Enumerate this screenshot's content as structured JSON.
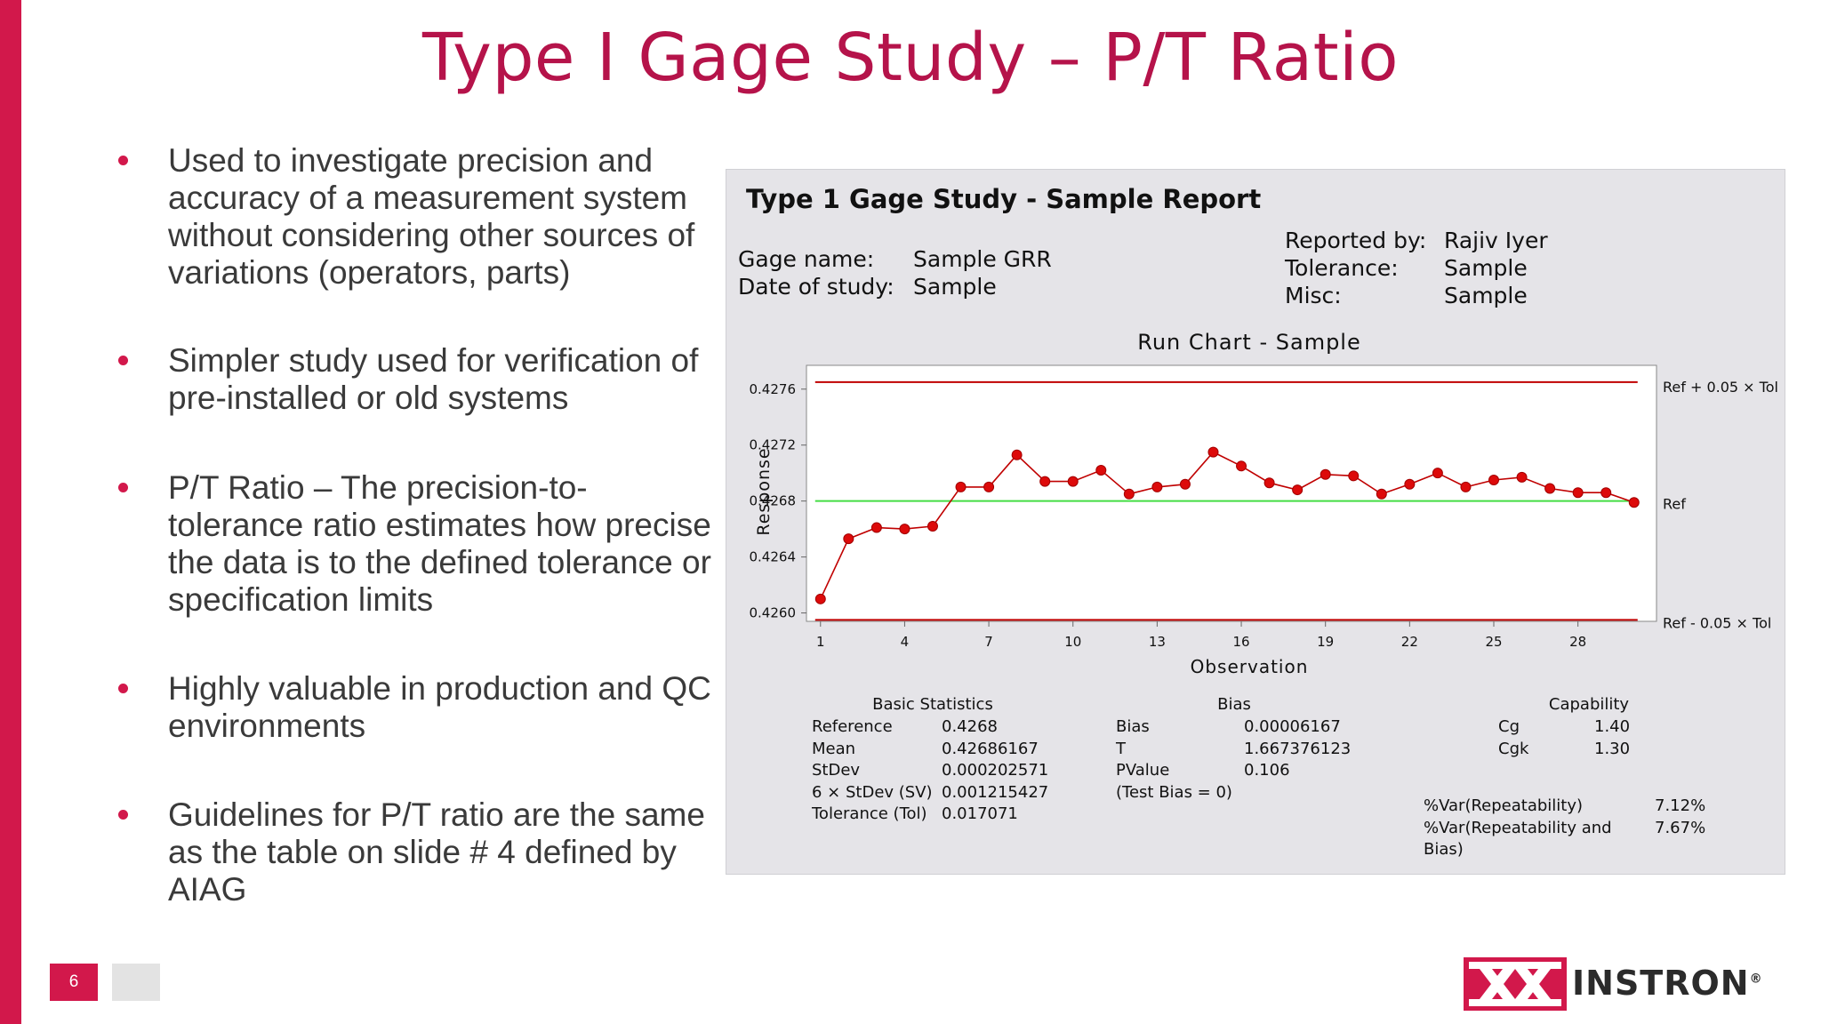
{
  "slide": {
    "title": "Type I Gage Study – P/T Ratio",
    "page_number": "6",
    "accent_color": "#d2184b",
    "title_color": "#b5134a"
  },
  "bullets": [
    "Used to investigate precision and accuracy of a measurement system without considering other sources of variations (operators, parts)",
    "Simpler study used for verification of pre-installed or old systems",
    "P/T Ratio – The precision-to-tolerance ratio estimates how precise the data is to the defined tolerance or specification limits",
    "Highly valuable in production and QC environments",
    "Guidelines for P/T ratio are the same as the table on slide # 4 defined by AIAG"
  ],
  "report": {
    "title": "Type 1 Gage Study - Sample Report",
    "gage_name_label": "Gage name:",
    "gage_name_value": "Sample GRR",
    "date_label": "Date of study:",
    "date_value": "Sample",
    "reported_by_label": "Reported by:",
    "reported_by_value": "Rajiv Iyer",
    "tolerance_label": "Tolerance:",
    "tolerance_value": "Sample",
    "misc_label": "Misc:",
    "misc_value": "Sample"
  },
  "chart_data": {
    "type": "line",
    "title": "Run Chart - Sample",
    "xlabel": "Observation",
    "ylabel": "Response",
    "x_ticks": [
      1,
      4,
      7,
      10,
      13,
      16,
      19,
      22,
      25,
      28
    ],
    "y_ticks": [
      "0.4260",
      "0.4264",
      "0.4268",
      "0.4272",
      "0.4276"
    ],
    "xlim": [
      0.5,
      30.8
    ],
    "ylim": [
      0.42594,
      0.42777
    ],
    "reference": 0.4268,
    "upper_limit": 0.42765,
    "lower_limit": 0.42595,
    "ref_label": "Ref",
    "upper_label": "Ref + 0.05 × Tol",
    "lower_label": "Ref - 0.05 × Tol",
    "grid": false,
    "line_color": "#c00000",
    "ref_color": "#44dd44",
    "limit_color": "#c00000",
    "x": [
      1,
      2,
      3,
      4,
      5,
      6,
      7,
      8,
      9,
      10,
      11,
      12,
      13,
      14,
      15,
      16,
      17,
      18,
      19,
      20,
      21,
      22,
      23,
      24,
      25,
      26,
      27,
      28,
      29,
      30
    ],
    "values": [
      0.4261,
      0.42653,
      0.42661,
      0.4266,
      0.42662,
      0.4269,
      0.4269,
      0.42713,
      0.42694,
      0.42694,
      0.42702,
      0.42685,
      0.4269,
      0.42692,
      0.42715,
      0.42705,
      0.42693,
      0.42688,
      0.42699,
      0.42698,
      0.42685,
      0.42692,
      0.427,
      0.4269,
      0.42695,
      0.42697,
      0.42689,
      0.42686,
      0.42686,
      0.42679
    ]
  },
  "basic_statistics": {
    "header": "Basic Statistics",
    "rows": [
      {
        "label": "Reference",
        "value": "0.4268"
      },
      {
        "label": "Mean",
        "value": "0.42686167"
      },
      {
        "label": "StDev",
        "value": "0.000202571"
      },
      {
        "label": "6 × StDev (SV)",
        "value": "0.001215427"
      },
      {
        "label": "Tolerance (Tol)",
        "value": "0.017071"
      }
    ]
  },
  "bias": {
    "header": "Bias",
    "rows": [
      {
        "label": "Bias",
        "value": "0.00006167"
      },
      {
        "label": "T",
        "value": "1.667376123"
      },
      {
        "label": "PValue",
        "value": "0.106"
      },
      {
        "label": "(Test Bias = 0)",
        "value": ""
      }
    ]
  },
  "capability": {
    "header": "Capability",
    "rows": [
      {
        "label": "Cg",
        "value": "1.40"
      },
      {
        "label": "Cgk",
        "value": "1.30"
      }
    ],
    "var_rows": [
      {
        "label": "%Var(Repeatability)",
        "value": "7.12%"
      },
      {
        "label": "%Var(Repeatability and Bias)",
        "value": "7.67%"
      }
    ]
  },
  "logo": {
    "text": "INSTRON",
    "registered_mark": "®",
    "icon": "instron-logo-icon"
  }
}
